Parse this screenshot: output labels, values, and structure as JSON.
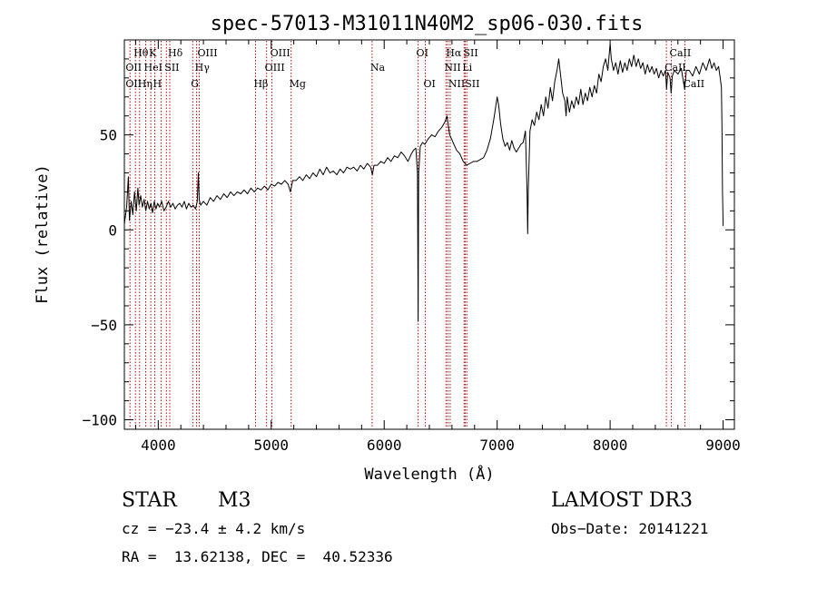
{
  "chart_data": {
    "type": "line",
    "title": "spec-57013-M31011N40M2_sp06-030.fits",
    "xlabel": "Wavelength (Å)",
    "ylabel": "Flux (relative)",
    "xlim": [
      3700,
      9100
    ],
    "ylim": [
      -105,
      100
    ],
    "xticks": [
      4000,
      5000,
      6000,
      7000,
      8000,
      9000
    ],
    "yticks": [
      -100,
      -50,
      0,
      50
    ],
    "ytick_labels": [
      "−100",
      "−50",
      "0",
      "50"
    ],
    "grid": false,
    "series": [
      {
        "name": "flux",
        "points": [
          [
            3700,
            3
          ],
          [
            3720,
            12
          ],
          [
            3735,
            28
          ],
          [
            3745,
            5
          ],
          [
            3760,
            15
          ],
          [
            3775,
            8
          ],
          [
            3790,
            20
          ],
          [
            3805,
            10
          ],
          [
            3820,
            22
          ],
          [
            3830,
            13
          ],
          [
            3845,
            18
          ],
          [
            3860,
            12
          ],
          [
            3875,
            16
          ],
          [
            3890,
            10
          ],
          [
            3905,
            15
          ],
          [
            3920,
            11
          ],
          [
            3935,
            14
          ],
          [
            3950,
            9
          ],
          [
            3965,
            15
          ],
          [
            3980,
            11
          ],
          [
            3995,
            14
          ],
          [
            4010,
            12
          ],
          [
            4030,
            15
          ],
          [
            4050,
            10
          ],
          [
            4070,
            12
          ],
          [
            4090,
            15
          ],
          [
            4110,
            12
          ],
          [
            4130,
            14
          ],
          [
            4150,
            11
          ],
          [
            4170,
            13
          ],
          [
            4190,
            14
          ],
          [
            4210,
            12
          ],
          [
            4230,
            15
          ],
          [
            4250,
            11
          ],
          [
            4270,
            14
          ],
          [
            4290,
            12
          ],
          [
            4310,
            13
          ],
          [
            4330,
            11
          ],
          [
            4345,
            15
          ],
          [
            4355,
            30
          ],
          [
            4362,
            16
          ],
          [
            4375,
            13
          ],
          [
            4400,
            15
          ],
          [
            4430,
            13
          ],
          [
            4460,
            17
          ],
          [
            4490,
            15
          ],
          [
            4520,
            18
          ],
          [
            4550,
            16
          ],
          [
            4580,
            19
          ],
          [
            4610,
            17
          ],
          [
            4640,
            20
          ],
          [
            4670,
            18
          ],
          [
            4700,
            20
          ],
          [
            4730,
            19
          ],
          [
            4760,
            21
          ],
          [
            4790,
            19
          ],
          [
            4820,
            22
          ],
          [
            4850,
            20
          ],
          [
            4880,
            22
          ],
          [
            4910,
            21
          ],
          [
            4940,
            23
          ],
          [
            4970,
            21
          ],
          [
            5000,
            24
          ],
          [
            5030,
            23
          ],
          [
            5060,
            25
          ],
          [
            5090,
            24
          ],
          [
            5120,
            26
          ],
          [
            5150,
            24
          ],
          [
            5170,
            20
          ],
          [
            5190,
            26
          ],
          [
            5220,
            26
          ],
          [
            5250,
            28
          ],
          [
            5280,
            26
          ],
          [
            5310,
            29
          ],
          [
            5340,
            27
          ],
          [
            5370,
            30
          ],
          [
            5400,
            28
          ],
          [
            5430,
            32
          ],
          [
            5460,
            29
          ],
          [
            5490,
            33
          ],
          [
            5520,
            30
          ],
          [
            5550,
            31
          ],
          [
            5580,
            29
          ],
          [
            5610,
            32
          ],
          [
            5640,
            30
          ],
          [
            5670,
            33
          ],
          [
            5700,
            32
          ],
          [
            5730,
            33
          ],
          [
            5760,
            31
          ],
          [
            5790,
            34
          ],
          [
            5820,
            32
          ],
          [
            5850,
            35
          ],
          [
            5880,
            33
          ],
          [
            5895,
            29
          ],
          [
            5910,
            34
          ],
          [
            5940,
            34
          ],
          [
            5970,
            36
          ],
          [
            6000,
            35
          ],
          [
            6030,
            38
          ],
          [
            6060,
            36
          ],
          [
            6090,
            39
          ],
          [
            6120,
            38
          ],
          [
            6150,
            41
          ],
          [
            6180,
            39
          ],
          [
            6210,
            36
          ],
          [
            6240,
            40
          ],
          [
            6260,
            42
          ],
          [
            6280,
            43
          ],
          [
            6295,
            30
          ],
          [
            6300,
            -48
          ],
          [
            6305,
            30
          ],
          [
            6320,
            44
          ],
          [
            6340,
            46
          ],
          [
            6360,
            45
          ],
          [
            6390,
            48
          ],
          [
            6420,
            50
          ],
          [
            6450,
            49
          ],
          [
            6480,
            52
          ],
          [
            6510,
            54
          ],
          [
            6540,
            57
          ],
          [
            6555,
            60
          ],
          [
            6565,
            56
          ],
          [
            6580,
            50
          ],
          [
            6610,
            46
          ],
          [
            6640,
            42
          ],
          [
            6670,
            40
          ],
          [
            6700,
            36
          ],
          [
            6730,
            34
          ],
          [
            6760,
            35
          ],
          [
            6790,
            36
          ],
          [
            6820,
            36
          ],
          [
            6850,
            37
          ],
          [
            6880,
            38
          ],
          [
            6910,
            42
          ],
          [
            6940,
            48
          ],
          [
            6970,
            58
          ],
          [
            6990,
            66
          ],
          [
            7000,
            70
          ],
          [
            7015,
            65
          ],
          [
            7030,
            56
          ],
          [
            7050,
            48
          ],
          [
            7070,
            44
          ],
          [
            7090,
            46
          ],
          [
            7110,
            42
          ],
          [
            7130,
            47
          ],
          [
            7150,
            43
          ],
          [
            7170,
            41
          ],
          [
            7190,
            43
          ],
          [
            7210,
            45
          ],
          [
            7230,
            46
          ],
          [
            7250,
            52
          ],
          [
            7265,
            20
          ],
          [
            7270,
            -2
          ],
          [
            7275,
            20
          ],
          [
            7290,
            52
          ],
          [
            7310,
            58
          ],
          [
            7330,
            55
          ],
          [
            7350,
            62
          ],
          [
            7370,
            58
          ],
          [
            7390,
            66
          ],
          [
            7410,
            60
          ],
          [
            7430,
            70
          ],
          [
            7450,
            64
          ],
          [
            7470,
            75
          ],
          [
            7490,
            68
          ],
          [
            7510,
            78
          ],
          [
            7530,
            84
          ],
          [
            7545,
            90
          ],
          [
            7560,
            82
          ],
          [
            7580,
            72
          ],
          [
            7600,
            68
          ],
          [
            7610,
            60
          ],
          [
            7620,
            70
          ],
          [
            7640,
            62
          ],
          [
            7660,
            68
          ],
          [
            7680,
            64
          ],
          [
            7700,
            70
          ],
          [
            7720,
            66
          ],
          [
            7740,
            74
          ],
          [
            7760,
            66
          ],
          [
            7780,
            72
          ],
          [
            7800,
            68
          ],
          [
            7820,
            75
          ],
          [
            7840,
            70
          ],
          [
            7860,
            76
          ],
          [
            7880,
            72
          ],
          [
            7900,
            82
          ],
          [
            7920,
            78
          ],
          [
            7940,
            86
          ],
          [
            7960,
            90
          ],
          [
            7980,
            84
          ],
          [
            8000,
            98
          ],
          [
            8010,
            90
          ],
          [
            8030,
            84
          ],
          [
            8050,
            88
          ],
          [
            8070,
            82
          ],
          [
            8090,
            89
          ],
          [
            8110,
            83
          ],
          [
            8130,
            88
          ],
          [
            8150,
            84
          ],
          [
            8170,
            90
          ],
          [
            8190,
            86
          ],
          [
            8210,
            92
          ],
          [
            8230,
            86
          ],
          [
            8250,
            90
          ],
          [
            8270,
            85
          ],
          [
            8290,
            88
          ],
          [
            8310,
            82
          ],
          [
            8330,
            87
          ],
          [
            8350,
            83
          ],
          [
            8370,
            86
          ],
          [
            8390,
            82
          ],
          [
            8410,
            85
          ],
          [
            8430,
            80
          ],
          [
            8450,
            84
          ],
          [
            8470,
            81
          ],
          [
            8490,
            84
          ],
          [
            8500,
            74
          ],
          [
            8510,
            83
          ],
          [
            8530,
            80
          ],
          [
            8540,
            72
          ],
          [
            8550,
            81
          ],
          [
            8570,
            84
          ],
          [
            8600,
            82
          ],
          [
            8630,
            85
          ],
          [
            8660,
            74
          ],
          [
            8675,
            84
          ],
          [
            8700,
            84
          ],
          [
            8730,
            81
          ],
          [
            8760,
            86
          ],
          [
            8790,
            82
          ],
          [
            8820,
            88
          ],
          [
            8850,
            84
          ],
          [
            8880,
            90
          ],
          [
            8900,
            85
          ],
          [
            8920,
            88
          ],
          [
            8940,
            84
          ],
          [
            8960,
            86
          ],
          [
            8975,
            80
          ],
          [
            8985,
            75
          ],
          [
            8990,
            55
          ],
          [
            8995,
            20
          ],
          [
            9000,
            2
          ]
        ]
      }
    ],
    "lines": [
      {
        "x": 3750
      },
      {
        "x": 3798
      },
      {
        "x": 3835
      },
      {
        "x": 3889
      },
      {
        "x": 3934
      },
      {
        "x": 3969
      },
      {
        "x": 4026
      },
      {
        "x": 4072
      },
      {
        "x": 4102
      },
      {
        "x": 4305
      },
      {
        "x": 4340
      },
      {
        "x": 4363
      },
      {
        "x": 4861
      },
      {
        "x": 4959
      },
      {
        "x": 5007
      },
      {
        "x": 5176
      },
      {
        "x": 5893
      },
      {
        "x": 6300
      },
      {
        "x": 6364
      },
      {
        "x": 6548
      },
      {
        "x": 6563
      },
      {
        "x": 6584
      },
      {
        "x": 6708
      },
      {
        "x": 6717
      },
      {
        "x": 6731
      },
      {
        "x": 8498
      },
      {
        "x": 8542
      },
      {
        "x": 8662
      }
    ],
    "annotations": [
      {
        "text": "Hθ",
        "x": 3798,
        "row": 1
      },
      {
        "text": "K",
        "x": 3934,
        "row": 1
      },
      {
        "text": "Hδ",
        "x": 4102,
        "row": 1
      },
      {
        "text": "OIII",
        "x": 4363,
        "row": 1
      },
      {
        "text": "OIII",
        "x": 5007,
        "row": 1
      },
      {
        "text": "OI",
        "x": 6300,
        "row": 1
      },
      {
        "text": "Hα",
        "x": 6563,
        "row": 1
      },
      {
        "text": "SII",
        "x": 6717,
        "row": 1
      },
      {
        "text": "CaII",
        "x": 8542,
        "row": 1
      },
      {
        "text": "OII",
        "x": 3727,
        "row": 2
      },
      {
        "text": "HeI",
        "x": 3889,
        "row": 2
      },
      {
        "text": "SII",
        "x": 4072,
        "row": 2
      },
      {
        "text": "Hγ",
        "x": 4340,
        "row": 2
      },
      {
        "text": "OIII",
        "x": 4959,
        "row": 2
      },
      {
        "text": "Na",
        "x": 5893,
        "row": 2
      },
      {
        "text": "NII",
        "x": 6548,
        "row": 2
      },
      {
        "text": "Li",
        "x": 6708,
        "row": 2
      },
      {
        "text": "CaII",
        "x": 8498,
        "row": 2
      },
      {
        "text": "OII",
        "x": 3727,
        "row": 3
      },
      {
        "text": "Hη",
        "x": 3835,
        "row": 3
      },
      {
        "text": "H",
        "x": 3969,
        "row": 3
      },
      {
        "text": "G",
        "x": 4305,
        "row": 3
      },
      {
        "text": "Hβ",
        "x": 4861,
        "row": 3
      },
      {
        "text": "Mg",
        "x": 5176,
        "row": 3
      },
      {
        "text": "OI",
        "x": 6364,
        "row": 3
      },
      {
        "text": "NII",
        "x": 6584,
        "row": 3
      },
      {
        "text": "SII",
        "x": 6731,
        "row": 3
      },
      {
        "text": "CaII",
        "x": 8662,
        "row": 3
      }
    ]
  },
  "info": {
    "object_class": "STAR",
    "subclass": "M3",
    "survey": "LAMOST DR3",
    "cz": "cz = −23.4 ± 4.2 km/s",
    "obs_date": "Obs−Date: 20141221",
    "coords": "RA =  13.62138, DEC =  40.52336"
  },
  "colors": {
    "line_marker": "#c00000",
    "spectrum": "#000000"
  }
}
